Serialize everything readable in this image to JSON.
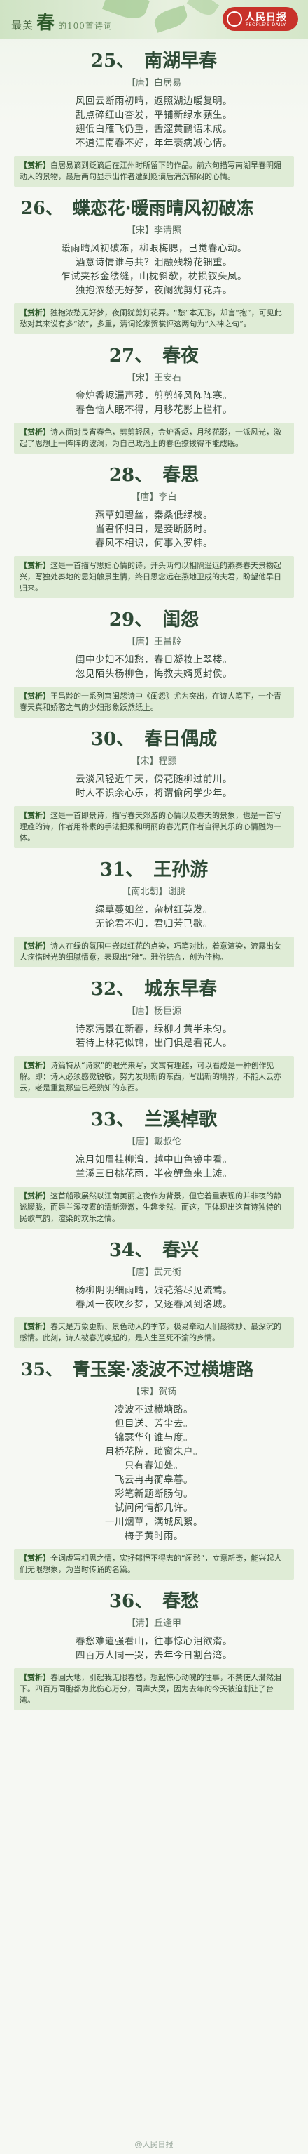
{
  "header": {
    "prefix": "最美",
    "main": "春",
    "suffix": "的100首诗词",
    "logo_name": "人民日报",
    "logo_en": "PEOPLE'S DAILY"
  },
  "poems": [
    {
      "num": "25、",
      "title": "南湖早春",
      "author": "【唐】白居易",
      "lines": [
        "风回云断雨初晴，返照湖边暖复明。",
        "乱点碎红山杏发，平铺新绿水蘋生。",
        "翅低白雁飞仍重，舌涩黄鹂语未成。",
        "不道江南春不好，年年衰病减心情。"
      ],
      "note_tag": "【赏析】",
      "note": "白居易谪到贬谪后在江州时所留下的作品。前六句描写南湖早春明媚动人的景物，最后两句显示出作者遭到贬谪后消沉郁闷的心情。"
    },
    {
      "num": "26、",
      "title": "蝶恋花·暖雨晴风初破冻",
      "author": "【宋】李清照",
      "lines": [
        "暖雨晴风初破冻，柳眼梅腮，已觉春心动。",
        "酒意诗情谁与共？泪融残粉花钿重。",
        "乍试夹衫金缕缝，山枕斜欹，枕损钗头凤。",
        "独抱浓愁无好梦，夜阑犹剪灯花弄。"
      ],
      "note_tag": "【赏析】",
      "note": "独抱浓愁无好梦，夜阑犹剪灯花弄。“愁”本无形，却言“抱”，可见此愁对其来说有多“浓”，多重，清词论家贺裳评这两句为“入神之句”。"
    },
    {
      "num": "27、",
      "title": "春夜",
      "author": "【宋】王安石",
      "lines": [
        "金炉香烬漏声残，剪剪轻风阵阵寒。",
        "春色恼人眠不得，月移花影上栏杆。"
      ],
      "note_tag": "【赏析】",
      "note": "诗人面对良宵春色，剪剪轻风，金炉香烬，月移花影，一派风光，激起了思想上一阵阵的波澜，为自己政治上的春色撩拨得不能成眠。"
    },
    {
      "num": "28、",
      "title": "春思",
      "author": "【唐】李白",
      "lines": [
        "燕草如碧丝，秦桑低绿枝。",
        "当君怀归日，是妾断肠时。",
        "春风不相识，何事入罗帏。"
      ],
      "note_tag": "【赏析】",
      "note": "这是一首描写思妇心情的诗，开头两句以相隔遥远的燕秦春天景物起兴，写独处秦地的思妇触景生情，终日思念远在燕地卫戍的夫君，盼望他早日归来。"
    },
    {
      "num": "29、",
      "title": "闺怨",
      "author": "【唐】王昌龄",
      "lines": [
        "闺中少妇不知愁，春日凝妆上翠楼。",
        "忽见陌头杨柳色，悔教夫婿觅封侯。"
      ],
      "note_tag": "【赏析】",
      "note": "王昌龄的一系列宫闺怨诗中《闺怨》尤为突出，在诗人笔下，一个青春天真和娇憨之气的少妇形象跃然纸上。"
    },
    {
      "num": "30、",
      "title": "春日偶成",
      "author": "【宋】程颢",
      "lines": [
        "云淡风轻近午天，傍花随柳过前川。",
        "时人不识余心乐，将谓偷闲学少年。"
      ],
      "note_tag": "【赏析】",
      "note": "这是一首即景诗，描写春天郊游的心情以及春天的景象，也是一首写理趣的诗，作者用朴素的手法把柔和明丽的春光同作者自得其乐的心情融为一体。"
    },
    {
      "num": "31、",
      "title": "王孙游",
      "author": "【南北朝】谢朓",
      "lines": [
        "绿草蔓如丝，杂树红英发。",
        "无论君不归，君归芳已歇。"
      ],
      "note_tag": "【赏析】",
      "note": "诗人在绿的氛围中嵌以红花的点染，巧笔对比，着意渲染，流露出女人疼惜时光的细腻情意，表现出“雅”。雅俗结合，创为佳构。"
    },
    {
      "num": "32、",
      "title": "城东早春",
      "author": "【唐】杨巨源",
      "lines": [
        "诗家清景在新春，绿柳才黄半未匀。",
        "若待上林花似锦，出门俱是看花人。"
      ],
      "note_tag": "【赏析】",
      "note": "诗篇特从“诗家”的眼光来写，文寓有理趣，可以看成是一种创作见解。即：诗人必须感觉锐敏，努力发现新的东西，写出新的境界，不能人云亦云，老是重复那些已经熟知的东西。"
    },
    {
      "num": "33、",
      "title": "兰溪棹歌",
      "author": "【唐】戴叔伦",
      "lines": [
        "凉月如眉挂柳湾，越中山色镜中看。",
        "兰溪三日桃花雨，半夜鲤鱼来上滩。"
      ],
      "note_tag": "【赏析】",
      "note": "这首船歌展然以江南美丽之夜作为背景，但它着重表现的并非夜的静谧朦胧，而是兰溪夜雾的清新澄澈，生趣盎然。而这，正体现出这首诗独特的民歌气韵，渲染的欢乐之情。"
    },
    {
      "num": "34、",
      "title": "春兴",
      "author": "【唐】武元衡",
      "lines": [
        "杨柳阴阴细雨晴，残花落尽见流莺。",
        "春风一夜吹乡梦，又逐春风到洛城。"
      ],
      "note_tag": "【赏析】",
      "note": "春天是万象更新、景色动人的季节，极易牵动人们最微妙、最深沉的感情。此刻，诗人被春光唤起的，是人生至死不渝的乡情。"
    },
    {
      "num": "35、",
      "title": "青玉案·凌波不过横塘路",
      "author": "【宋】贺铸",
      "lines": [
        "凌波不过横塘路。",
        "但目送、芳尘去。",
        "锦瑟华年谁与度。",
        "月桥花院，琐窗朱户。",
        "只有春知处。",
        "飞云冉冉蘅皋暮。",
        "彩笔新题断肠句。",
        "试问闲情都几许。",
        "一川烟草，满城风絮。",
        "梅子黄时雨。"
      ],
      "note_tag": "【赏析】",
      "note": "全词虚写相思之情，实抒郁悒不得志的“闲愁”，立意新奇，能兴起人们无限想象，为当时传诵的名篇。"
    },
    {
      "num": "36、",
      "title": "春愁",
      "author": "【清】丘逢甲",
      "lines": [
        "春愁难遣强看山，往事惊心泪欲潸。",
        "四百万人同一哭，去年今日割台湾。"
      ],
      "note_tag": "【赏析】",
      "note": "春回大地，引起我无限春愁，想起惊心动魄的往事，不禁使人潸然泪下。四百万同胞都为此伤心万分，同声大哭，因为去年的今天被迫割让了台湾。"
    }
  ],
  "footer": "@人民日报"
}
